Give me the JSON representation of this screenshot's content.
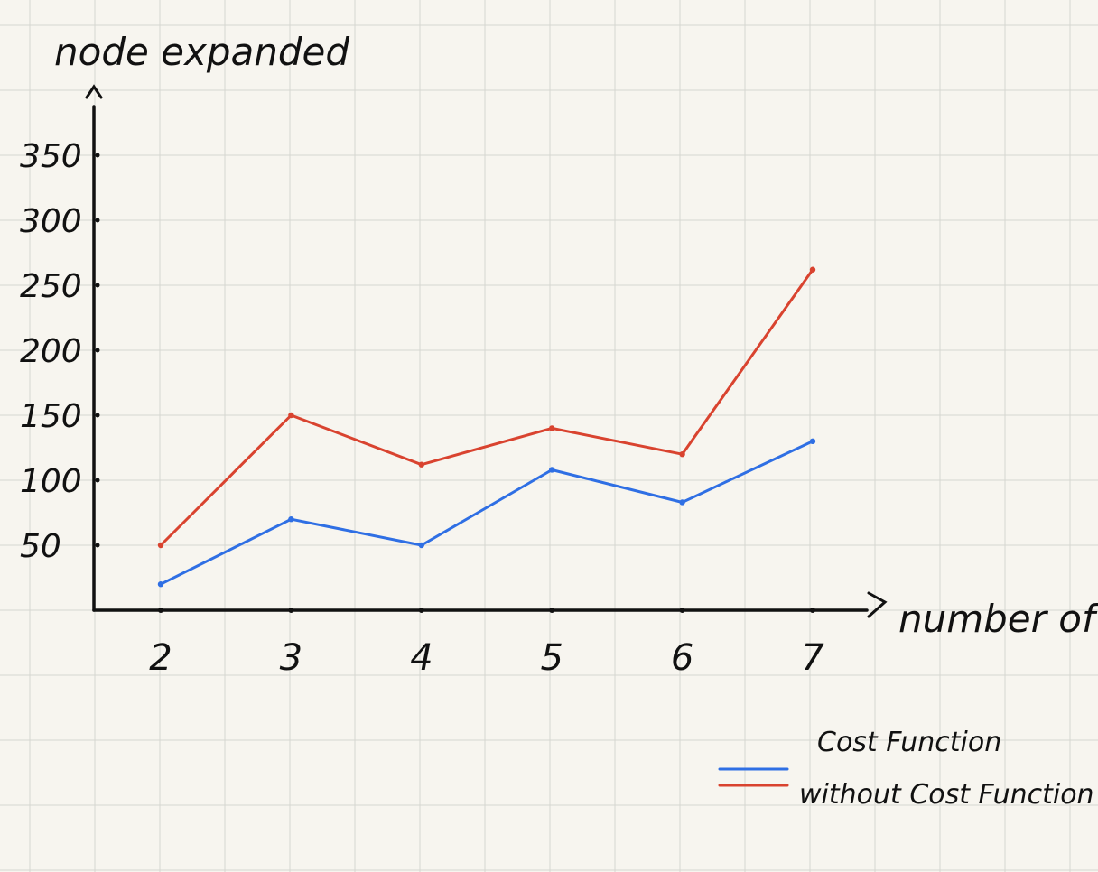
{
  "chart_data": {
    "type": "line",
    "title": "",
    "xlabel": "number of n",
    "ylabel": "node expanded",
    "x": [
      2,
      3,
      4,
      5,
      6,
      7
    ],
    "x_ticks": [
      "2",
      "3",
      "4",
      "5",
      "6",
      "7"
    ],
    "y_ticks": [
      "50",
      "100",
      "150",
      "200",
      "250",
      "300",
      "350"
    ],
    "ylim": [
      0,
      350
    ],
    "grid": true,
    "legend_position": "bottom-right",
    "series": [
      {
        "name": "Cost Function",
        "color": "#2f6fe4",
        "values": [
          20,
          70,
          50,
          108,
          83,
          130
        ]
      },
      {
        "name": "without Cost Function",
        "color": "#d9432f",
        "values": [
          50,
          150,
          112,
          140,
          120,
          262
        ]
      }
    ]
  }
}
